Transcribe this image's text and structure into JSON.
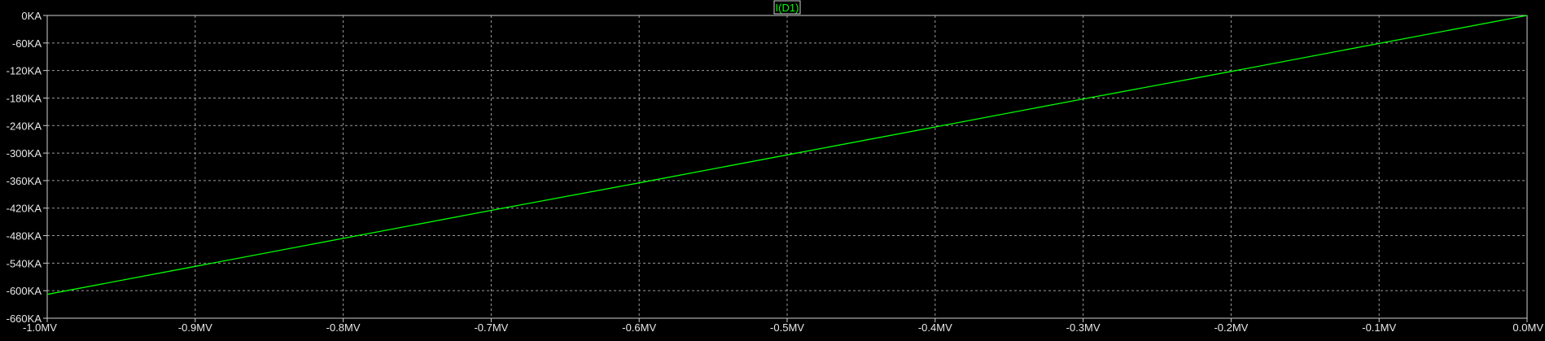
{
  "colors": {
    "background": "#000000",
    "grid": "#9a9a9a",
    "frame": "#cfcfcf",
    "label": "#e8e8e8",
    "trace": "#00ff00"
  },
  "chart_data": {
    "type": "line",
    "title": "",
    "xlabel": "",
    "ylabel": "",
    "grid": true,
    "xlim": [
      -1.0,
      0.0
    ],
    "ylim": [
      -660,
      0
    ],
    "x_ticks": [
      -1.0,
      -0.9,
      -0.8,
      -0.7,
      -0.6,
      -0.5,
      -0.4,
      -0.3,
      -0.2,
      -0.1,
      0.0
    ],
    "x_tick_labels": [
      "-1.0MV",
      "-0.9MV",
      "-0.8MV",
      "-0.7MV",
      "-0.6MV",
      "-0.5MV",
      "-0.4MV",
      "-0.3MV",
      "-0.2MV",
      "-0.1MV",
      "0.0MV"
    ],
    "y_ticks": [
      0,
      -60,
      -120,
      -180,
      -240,
      -300,
      -360,
      -420,
      -480,
      -540,
      -600,
      -660
    ],
    "y_tick_labels": [
      "0KA",
      "-60KA",
      "-120KA",
      "-180KA",
      "-240KA",
      "-300KA",
      "-360KA",
      "-420KA",
      "-480KA",
      "-540KA",
      "-600KA",
      "-660KA"
    ],
    "legend": "top-center",
    "series": [
      {
        "name": "I(D1)",
        "color": "#00ff00",
        "x": [
          -1.0,
          -0.9,
          -0.8,
          -0.7,
          -0.6,
          -0.5,
          -0.4,
          -0.3,
          -0.2,
          -0.1,
          0.0
        ],
        "y": [
          -608,
          -547,
          -486,
          -425,
          -365,
          -304,
          -243,
          -182,
          -122,
          -61,
          0
        ]
      }
    ]
  }
}
